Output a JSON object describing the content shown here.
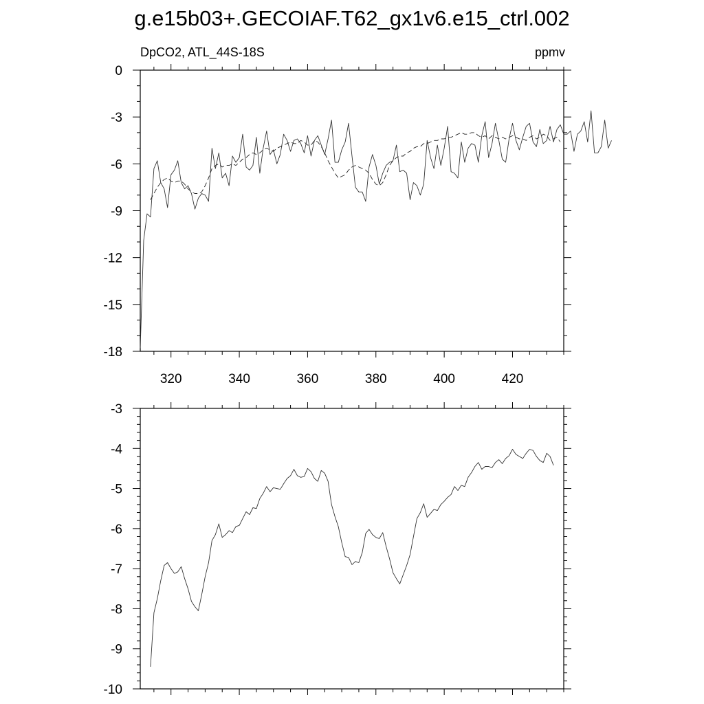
{
  "title": "g.e15b03+.GECOIAF.T62_gx1v6.e15_ctrl.002",
  "chart_data": [
    {
      "type": "line",
      "variable_label": "DpCO2, ATL_44S-18S",
      "units_label": "ppmv",
      "xlim": [
        311,
        435
      ],
      "ylim": [
        -18,
        0
      ],
      "x_ticks": [
        "320",
        "340",
        "360",
        "380",
        "400",
        "420"
      ],
      "y_ticks": [
        "0",
        "-3",
        "-6",
        "-9",
        "-12",
        "-15",
        "-18"
      ],
      "series": [
        {
          "style": "solid",
          "x_start": 311,
          "x_step": 1,
          "values": [
            -17.8,
            -10.9,
            -9.2,
            -9.4,
            -6.3,
            -5.8,
            -7.2,
            -7.6,
            -8.8,
            -6.7,
            -6.4,
            -5.8,
            -7.2,
            -7.6,
            -7.4,
            -7.9,
            -8.9,
            -8.2,
            -7.9,
            -8.0,
            -8.4,
            -5.0,
            -6.3,
            -5.3,
            -6.9,
            -6.6,
            -7.4,
            -5.5,
            -5.9,
            -5.6,
            -4.1,
            -6.2,
            -6.4,
            -6.1,
            -4.3,
            -6.6,
            -5.0,
            -3.9,
            -5.4,
            -5.1,
            -6.0,
            -5.4,
            -4.1,
            -4.5,
            -5.2,
            -4.5,
            -4.4,
            -4.7,
            -5.3,
            -4.2,
            -5.5,
            -4.5,
            -4.2,
            -4.8,
            -5.4,
            -4.4,
            -3.2,
            -5.9,
            -5.9,
            -5.1,
            -4.6,
            -3.4,
            -5.5,
            -7.5,
            -7.8,
            -7.8,
            -8.4,
            -6.2,
            -5.4,
            -6.1,
            -7.3,
            -6.6,
            -6.1,
            -5.9,
            -5.8,
            -4.8,
            -6.5,
            -6.4,
            -6.6,
            -8.3,
            -7.2,
            -7.4,
            -8.0,
            -7.3,
            -4.5,
            -5.6,
            -6.3,
            -4.8,
            -6.1,
            -5.0,
            -3.6,
            -6.5,
            -6.6,
            -6.9,
            -4.6,
            -5.9,
            -5.0,
            -4.7,
            -4.8,
            -5.9,
            -4.2,
            -3.3,
            -5.6,
            -4.7,
            -3.4,
            -4.5,
            -5.7,
            -5.9,
            -4.4,
            -3.4,
            -4.5,
            -5.1,
            -4.3,
            -3.6,
            -3.4,
            -4.6,
            -4.9,
            -3.8,
            -4.7,
            -4.5,
            -3.6,
            -4.6,
            -3.8,
            -3.5,
            -4.1,
            -4.1,
            -3.9,
            -5.2,
            -4.1,
            -3.9,
            -3.3,
            -4.6,
            -2.6,
            -5.3,
            -5.3,
            -4.9,
            -3.2,
            -5.0,
            -4.5
          ]
        },
        {
          "style": "dashed",
          "x_start": 314,
          "x_step": 1,
          "values": [
            -8.3,
            -7.9,
            -7.5,
            -7.2,
            -7.0,
            -6.9,
            -7.1,
            -7.2,
            -7.1,
            -7.1,
            -7.3,
            -7.6,
            -7.8,
            -7.9,
            -7.9,
            -7.8,
            -7.4,
            -6.9,
            -6.3,
            -6.1,
            -6.0,
            -6.2,
            -6.1,
            -6.1,
            -6.0,
            -6.1,
            -5.9,
            -5.7,
            -5.6,
            -5.4,
            -5.3,
            -5.4,
            -5.3,
            -5.1,
            -5.0,
            -5.1,
            -5.2,
            -5.0,
            -4.9,
            -4.8,
            -4.7,
            -4.6,
            -4.7,
            -4.7,
            -4.5,
            -4.6,
            -4.8,
            -4.8,
            -4.5,
            -4.6,
            -4.9,
            -5.3,
            -5.8,
            -6.2,
            -6.6,
            -6.9,
            -6.8,
            -6.7,
            -6.4,
            -6.2,
            -6.1,
            -6.2,
            -6.3,
            -6.4,
            -6.6,
            -7.0,
            -7.3,
            -7.4,
            -7.2,
            -6.7,
            -6.1,
            -5.8,
            -5.6,
            -5.5,
            -5.5,
            -5.3,
            -5.2,
            -5.0,
            -4.9,
            -4.9,
            -4.7,
            -4.7,
            -4.6,
            -4.5,
            -4.5,
            -4.4,
            -4.4,
            -4.3,
            -4.3,
            -4.2,
            -4.1,
            -4.0,
            -4.1,
            -4.1,
            -4.0,
            -4.0,
            -4.2,
            -4.3,
            -4.2,
            -4.4,
            -4.2,
            -4.3,
            -4.4,
            -4.3,
            -4.4,
            -4.3,
            -4.2,
            -4.3,
            -4.4,
            -4.4,
            -4.5,
            -4.3,
            -4.2,
            -4.4,
            -4.3,
            -4.1,
            -4.2,
            -4.5,
            -4.4,
            -4.3,
            -4.6
          ]
        }
      ]
    },
    {
      "type": "line",
      "xlim": [
        311,
        435
      ],
      "ylim": [
        -10,
        -3
      ],
      "y_ticks": [
        "-3",
        "-4",
        "-5",
        "-6",
        "-7",
        "-8",
        "-9",
        "-10"
      ],
      "series": [
        {
          "style": "solid",
          "x_start": 314,
          "x_step": 1,
          "values": [
            -9.45,
            -8.1,
            -7.75,
            -7.3,
            -6.92,
            -6.85,
            -7.0,
            -7.12,
            -7.08,
            -6.95,
            -7.25,
            -7.5,
            -7.82,
            -7.95,
            -8.05,
            -7.65,
            -7.2,
            -6.85,
            -6.3,
            -6.15,
            -5.88,
            -6.22,
            -6.15,
            -6.05,
            -6.1,
            -5.95,
            -5.92,
            -5.75,
            -5.58,
            -5.65,
            -5.48,
            -5.5,
            -5.25,
            -5.12,
            -4.95,
            -5.08,
            -4.98,
            -5.0,
            -5.02,
            -4.88,
            -4.75,
            -4.68,
            -4.52,
            -4.68,
            -4.72,
            -4.7,
            -4.5,
            -4.58,
            -4.75,
            -4.82,
            -4.55,
            -4.62,
            -4.82,
            -5.4,
            -5.7,
            -5.95,
            -6.35,
            -6.7,
            -6.72,
            -6.9,
            -6.82,
            -6.85,
            -6.6,
            -6.12,
            -6.02,
            -6.15,
            -6.22,
            -6.25,
            -6.1,
            -6.45,
            -6.75,
            -7.1,
            -7.25,
            -7.38,
            -7.15,
            -6.92,
            -6.65,
            -6.2,
            -5.75,
            -5.6,
            -5.38,
            -5.72,
            -5.62,
            -5.52,
            -5.55,
            -5.4,
            -5.32,
            -5.22,
            -5.15,
            -4.95,
            -5.05,
            -4.92,
            -4.95,
            -4.72,
            -4.6,
            -4.45,
            -4.35,
            -4.52,
            -4.45,
            -4.45,
            -4.48,
            -4.35,
            -4.28,
            -4.38,
            -4.25,
            -4.18,
            -4.02,
            -4.15,
            -4.2,
            -4.25,
            -4.12,
            -4.02,
            -4.05,
            -4.2,
            -4.3,
            -4.35,
            -4.12,
            -4.2,
            -4.42
          ]
        }
      ]
    }
  ]
}
